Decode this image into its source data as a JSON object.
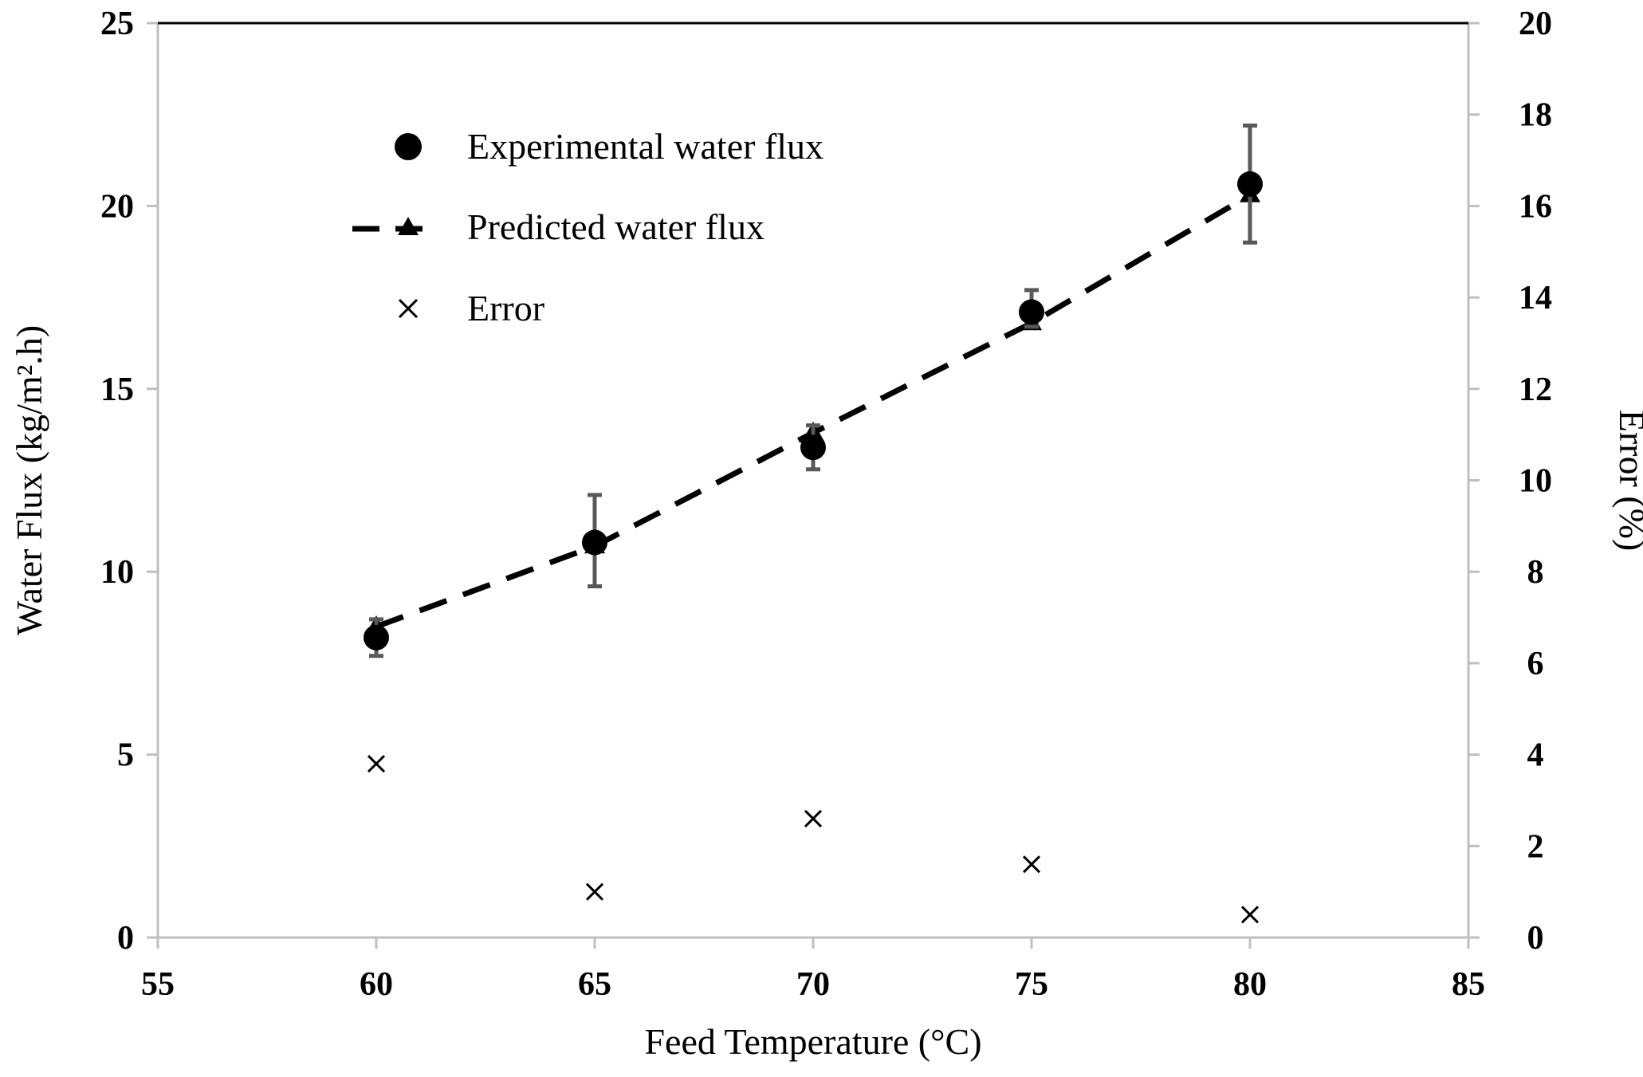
{
  "chart_data": {
    "type": "scatter",
    "xlabel": "Feed Temperature (°C)",
    "ylabel": "Water Flux (kg/m².h)",
    "y2label": "Error (%)",
    "xlim": [
      55,
      85
    ],
    "ylim": [
      0,
      25
    ],
    "y2lim": [
      0,
      20
    ],
    "xticks": [
      "55",
      "60",
      "65",
      "70",
      "75",
      "80",
      "85"
    ],
    "yticks": [
      "0",
      "5",
      "10",
      "15",
      "20",
      "25"
    ],
    "y2ticks": [
      "0",
      "2",
      "4",
      "6",
      "8",
      "10",
      "12",
      "14",
      "16",
      "18",
      "20"
    ],
    "legend_position": "top-left",
    "series": [
      {
        "name": "Experimental water flux",
        "marker": "circle",
        "axis": "left",
        "x": [
          60,
          65,
          70,
          75,
          80
        ],
        "values": [
          8.2,
          10.8,
          13.4,
          17.1,
          20.6
        ],
        "error_low": [
          0.5,
          1.2,
          0.6,
          0.4,
          1.6
        ],
        "error_high": [
          0.5,
          1.3,
          0.6,
          0.6,
          1.6
        ]
      },
      {
        "name": "Predicted water flux",
        "marker": "triangle",
        "line": "dashed",
        "axis": "left",
        "x": [
          60,
          65,
          70,
          75,
          80
        ],
        "values": [
          8.5,
          10.7,
          13.8,
          16.8,
          20.3
        ]
      },
      {
        "name": "Error",
        "marker": "x",
        "axis": "right",
        "x": [
          60,
          65,
          70,
          75,
          80
        ],
        "values": [
          3.8,
          1.0,
          2.6,
          1.6,
          0.5
        ]
      }
    ]
  },
  "colors": {
    "axis": "#bfbfbf",
    "top_border": "#000000",
    "error_bar": "#595959",
    "marker": "#000000"
  }
}
